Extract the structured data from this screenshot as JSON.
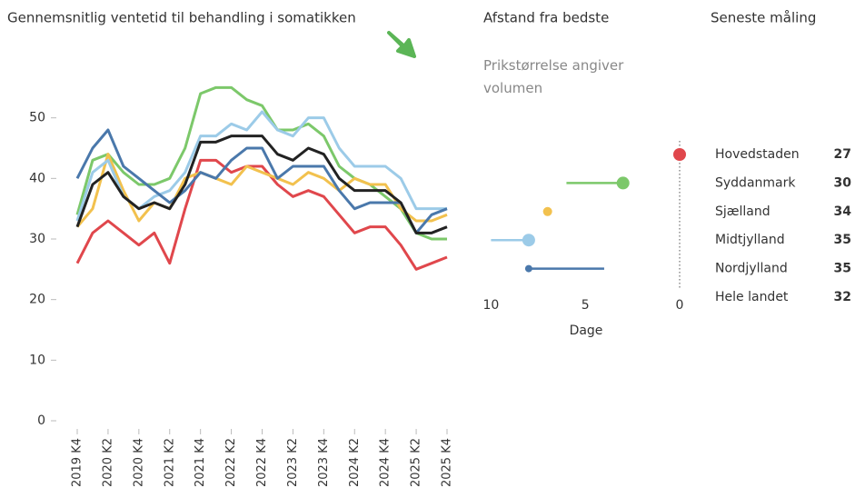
{
  "chart_data": [
    {
      "type": "line",
      "title": "Gennemsnitlig ventetid til behandling i somatikken",
      "categories": [
        "2019 K4",
        null,
        "2020 K2",
        null,
        "2020 K4",
        null,
        "2021 K2",
        null,
        "2021 K4",
        null,
        "2022 K2",
        null,
        "2022 K4",
        null,
        "2023 K2",
        null,
        "2023 K4",
        null,
        "2024 K2",
        null,
        "2024 K4",
        null,
        "2025 K2",
        null,
        "2025 K4"
      ],
      "ylim": [
        0,
        60
      ],
      "yticks": [
        0,
        10,
        20,
        30,
        40,
        50
      ],
      "grid": false,
      "series": [
        {
          "name": "Hovedstaden",
          "color": "#e0474c",
          "values": [
            26,
            31,
            33,
            31,
            29,
            31,
            26,
            35,
            43,
            43,
            41,
            42,
            42,
            39,
            37,
            38,
            37,
            34,
            31,
            32,
            32,
            29,
            25,
            26,
            27
          ]
        },
        {
          "name": "Syddanmark",
          "color": "#7cc86a",
          "values": [
            34,
            43,
            44,
            41,
            39,
            39,
            40,
            45,
            54,
            55,
            55,
            53,
            52,
            48,
            48,
            49,
            47,
            42,
            40,
            39,
            37,
            35,
            31,
            30,
            30
          ]
        },
        {
          "name": "Sjælland",
          "color": "#f2c14e",
          "values": [
            32,
            35,
            44,
            38,
            33,
            36,
            35,
            40,
            41,
            40,
            39,
            42,
            41,
            40,
            39,
            41,
            40,
            38,
            40,
            39,
            39,
            35,
            33,
            33,
            34
          ]
        },
        {
          "name": "Midtjylland",
          "color": "#9ccbe8",
          "values": [
            33,
            41,
            43,
            37,
            35,
            37,
            38,
            41,
            47,
            47,
            49,
            48,
            51,
            48,
            47,
            50,
            50,
            45,
            42,
            42,
            42,
            40,
            35,
            35,
            35
          ]
        },
        {
          "name": "Nordjylland",
          "color": "#4a78ab",
          "values": [
            40,
            45,
            48,
            42,
            40,
            38,
            36,
            38,
            41,
            40,
            43,
            45,
            45,
            40,
            42,
            42,
            42,
            38,
            35,
            36,
            36,
            36,
            31,
            34,
            35
          ]
        },
        {
          "name": "Hele landet",
          "color": "#222222",
          "values": [
            32,
            39,
            41,
            37,
            35,
            36,
            35,
            39,
            46,
            46,
            47,
            47,
            47,
            44,
            43,
            45,
            44,
            40,
            38,
            38,
            38,
            36,
            31,
            31,
            32
          ]
        }
      ]
    },
    {
      "type": "dot",
      "title": "Afstand fra bedste",
      "subtitle": "Prikstørrelse angiver volumen",
      "xlabel": "Dage",
      "xlim": [
        10.5,
        0
      ],
      "xticks": [
        10,
        5,
        0
      ],
      "categories": [
        "Hovedstaden",
        "Syddanmark",
        "Sjælland",
        "Midtjylland",
        "Nordjylland",
        "Hele landet"
      ],
      "colors": [
        "#e0474c",
        "#7cc86a",
        "#f2c14e",
        "#9ccbe8",
        "#4a78ab",
        "#222222"
      ],
      "values": [
        0,
        3,
        7,
        8,
        8,
        null
      ],
      "from": [
        null,
        6,
        null,
        10,
        4,
        null
      ],
      "sizes": [
        7,
        7,
        5,
        7,
        4,
        null
      ],
      "latest_title": "Seneste måling",
      "latest_values": [
        27,
        30,
        34,
        35,
        35,
        32
      ]
    }
  ]
}
